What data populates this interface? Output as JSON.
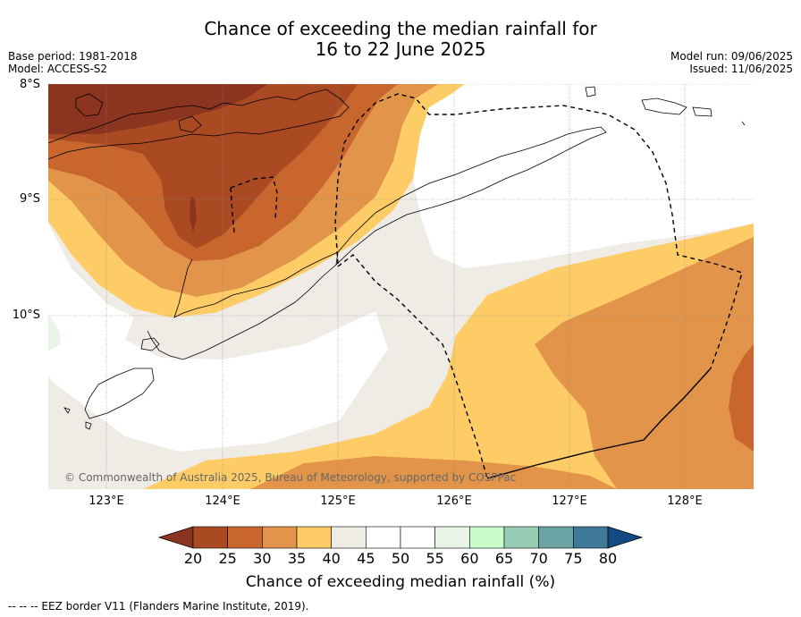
{
  "title": {
    "line1": "Chance of exceeding the median rainfall for",
    "line2": "16 to 22 June 2025"
  },
  "meta_left": {
    "base_period": "Base period: 1981-2018",
    "model": "Model: ACCESS-S2"
  },
  "meta_right": {
    "model_run": "Model run: 09/06/2025",
    "issued": "Issued: 11/06/2025"
  },
  "map": {
    "lat_labels": [
      "8°S",
      "9°S",
      "10°S"
    ],
    "lon_labels": [
      "123°E",
      "124°E",
      "125°E",
      "126°E",
      "127°E",
      "128°E"
    ],
    "copyright": "© Commonwealth of Australia 2025, Bureau of Meteorology, supported by COSPPac"
  },
  "colorbar": {
    "ticks": [
      "20",
      "25",
      "30",
      "35",
      "40",
      "45",
      "50",
      "55",
      "60",
      "65",
      "70",
      "75",
      "80"
    ],
    "colors": [
      "#8b3520",
      "#a94a22",
      "#c8662d",
      "#e2954a",
      "#fecc66",
      "#efebe5",
      "#ffffff",
      "#ffffff",
      "#e8f4e6",
      "#c8fcc8",
      "#98ccb4",
      "#6aa4a4",
      "#3e7a98",
      "#144a82"
    ],
    "label": "Chance of exceeding median rainfall (%)"
  },
  "footnote": "--  --  -- EEZ border V11 (Flanders Marine Institute, 2019)."
}
